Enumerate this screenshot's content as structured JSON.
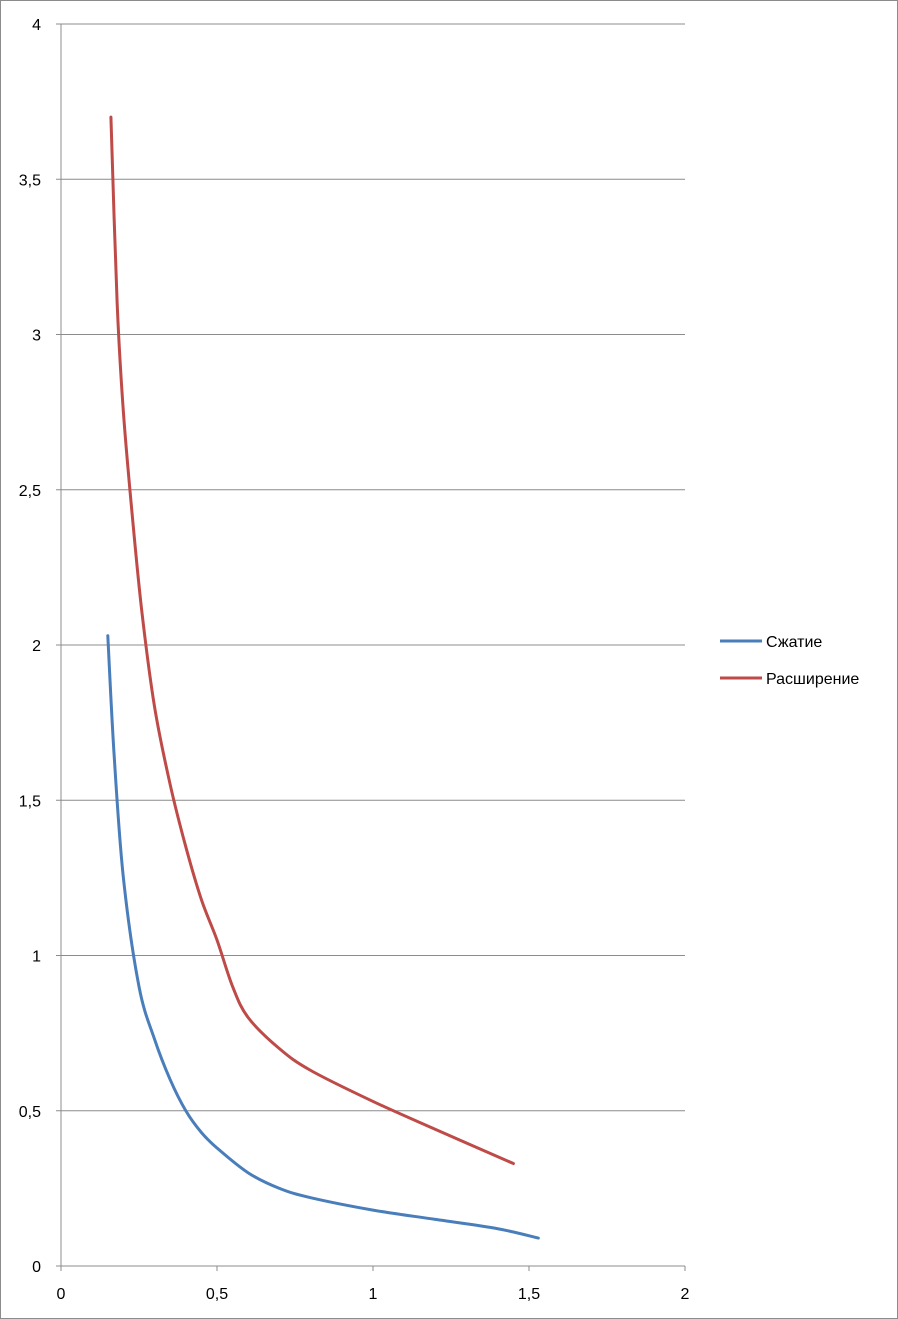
{
  "chart_data": {
    "type": "line",
    "xlim": [
      0,
      2
    ],
    "ylim": [
      0,
      4
    ],
    "x_ticks": [
      0,
      0.5,
      1,
      1.5,
      2
    ],
    "y_ticks": [
      0,
      0.5,
      1,
      1.5,
      2,
      2.5,
      3,
      3.5,
      4
    ],
    "x_tick_labels": [
      "0",
      "0,5",
      "1",
      "1,5",
      "2"
    ],
    "y_tick_labels": [
      "0",
      "0,5",
      "1",
      "1,5",
      "2",
      "2,5",
      "3",
      "3,5",
      "4"
    ],
    "grid": "horizontal",
    "legend_position": "right",
    "series": [
      {
        "name": "Сжатие",
        "color": "#4a7ebb",
        "x": [
          0.15,
          0.17,
          0.2,
          0.25,
          0.3,
          0.35,
          0.4,
          0.45,
          0.5,
          0.6,
          0.7,
          0.8,
          1.0,
          1.2,
          1.4,
          1.53
        ],
        "y": [
          2.03,
          1.65,
          1.25,
          0.9,
          0.73,
          0.6,
          0.5,
          0.43,
          0.38,
          0.3,
          0.25,
          0.22,
          0.18,
          0.15,
          0.12,
          0.09
        ]
      },
      {
        "name": "Расширение",
        "color": "#be4b48",
        "x": [
          0.16,
          0.18,
          0.2,
          0.23,
          0.26,
          0.3,
          0.35,
          0.4,
          0.45,
          0.5,
          0.55,
          0.6,
          0.7,
          0.8,
          1.0,
          1.2,
          1.45
        ],
        "y": [
          3.7,
          3.1,
          2.75,
          2.4,
          2.1,
          1.8,
          1.55,
          1.35,
          1.18,
          1.05,
          0.9,
          0.8,
          0.7,
          0.63,
          0.53,
          0.44,
          0.33
        ]
      }
    ]
  }
}
